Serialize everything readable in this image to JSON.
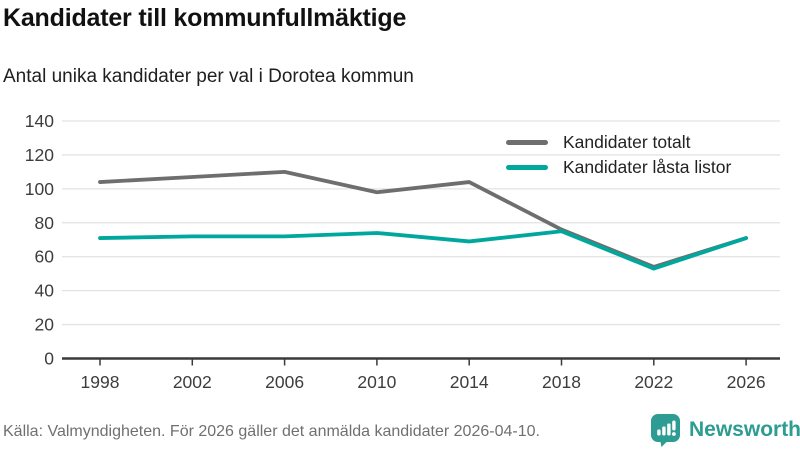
{
  "page": {
    "title": "Kandidater till kommunfullmäktige",
    "subtitle": "Antal unika kandidater per val i Dorotea kommun"
  },
  "chart_data": {
    "type": "line",
    "title": "Kandidater till kommunfullmäktige",
    "subtitle": "Antal unika kandidater per val i Dorotea kommun",
    "categories": [
      "1998",
      "2002",
      "2006",
      "2010",
      "2014",
      "2018",
      "2022",
      "2026"
    ],
    "series": [
      {
        "name": "Kandidater totalt",
        "color": "#6e6e6e",
        "values": [
          104,
          107,
          110,
          98,
          104,
          76,
          54,
          71
        ]
      },
      {
        "name": "Kandidater låsta listor",
        "color": "#00a79c",
        "values": [
          71,
          72,
          72,
          74,
          69,
          75,
          53,
          71
        ]
      }
    ],
    "ylim": [
      0,
      140
    ],
    "yticks": [
      0,
      20,
      40,
      60,
      80,
      100,
      120,
      140
    ],
    "grid": "horizontal",
    "legend_position": "top-right",
    "axis_color": "#3a3a3a",
    "grid_color": "#e3e3e3",
    "tick_label_color": "#3d3d3d"
  },
  "footer": {
    "source": "Källa: Valmyndigheten. För 2026 gäller det anmälda kandidater 2026-04-10.",
    "brand": "Newsworthy",
    "brand_color": "#2d9c92"
  }
}
